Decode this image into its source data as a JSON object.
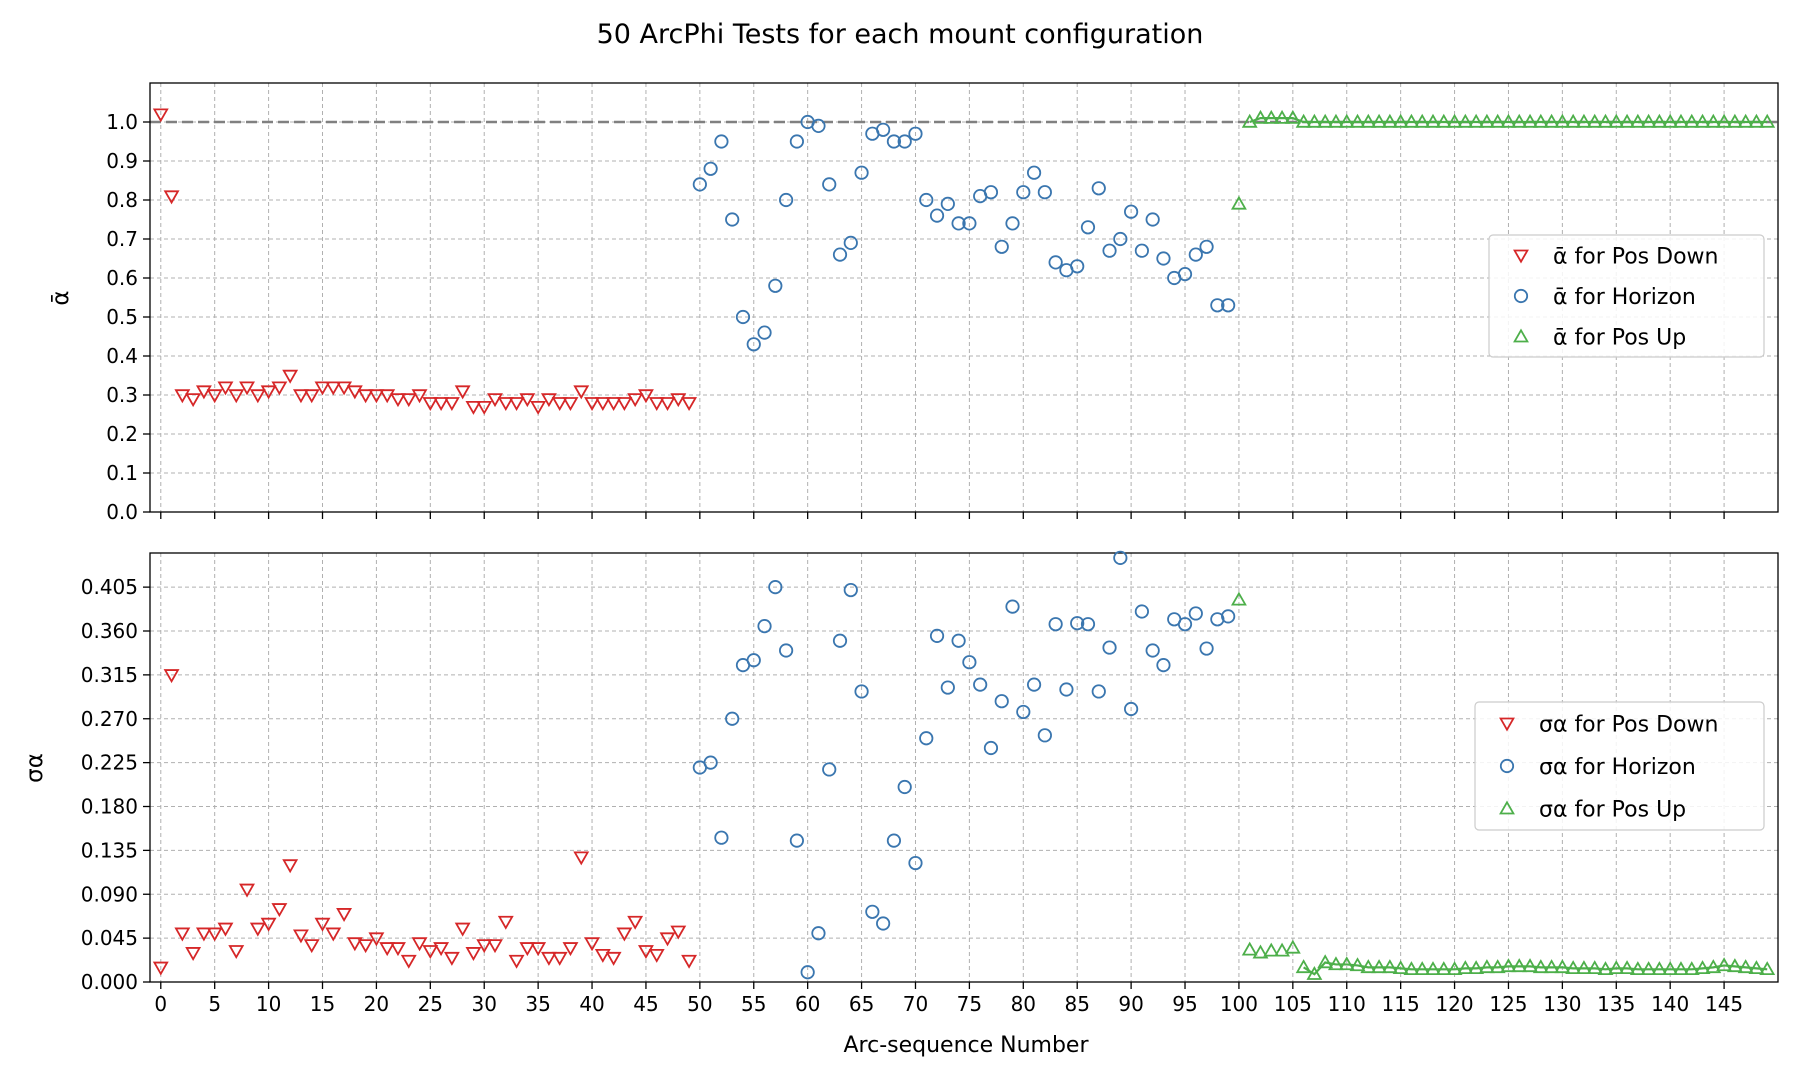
{
  "figure": {
    "title": "50 ArcPhi Tests for each mount configuration",
    "xlabel": "Arc-sequence Number"
  },
  "colors": {
    "pos_down": "#d62728",
    "horizon": "#3a76af",
    "pos_up": "#4daf4a",
    "reference_line": "#808080"
  },
  "chart_data": [
    {
      "type": "scatter",
      "ylabel": "ᾱ",
      "xlim": [
        -1,
        150
      ],
      "ylim": [
        0,
        1.1
      ],
      "xticks": [
        0,
        5,
        10,
        15,
        20,
        25,
        30,
        35,
        40,
        45,
        50,
        55,
        60,
        65,
        70,
        75,
        80,
        85,
        90,
        95,
        100,
        105,
        110,
        115,
        120,
        125,
        130,
        135,
        140,
        145
      ],
      "yticks": [
        "0.0",
        "0.1",
        "0.2",
        "0.3",
        "0.4",
        "0.5",
        "0.6",
        "0.7",
        "0.8",
        "0.9",
        "1.0"
      ],
      "reference_line": 1.0,
      "legend_position": "center-right",
      "series": [
        {
          "name": "ᾱ for Pos Down",
          "marker": "triangle-down",
          "color": "#d62728",
          "x": [
            0,
            1,
            2,
            3,
            4,
            5,
            6,
            7,
            8,
            9,
            10,
            11,
            12,
            13,
            14,
            15,
            16,
            17,
            18,
            19,
            20,
            21,
            22,
            23,
            24,
            25,
            26,
            27,
            28,
            29,
            30,
            31,
            32,
            33,
            34,
            35,
            36,
            37,
            38,
            39,
            40,
            41,
            42,
            43,
            44,
            45,
            46,
            47,
            48,
            49
          ],
          "y": [
            1.02,
            0.81,
            0.3,
            0.29,
            0.31,
            0.3,
            0.32,
            0.3,
            0.32,
            0.3,
            0.31,
            0.32,
            0.35,
            0.3,
            0.3,
            0.32,
            0.32,
            0.32,
            0.31,
            0.3,
            0.3,
            0.3,
            0.29,
            0.29,
            0.3,
            0.28,
            0.28,
            0.28,
            0.31,
            0.27,
            0.27,
            0.29,
            0.28,
            0.28,
            0.29,
            0.27,
            0.29,
            0.28,
            0.28,
            0.31,
            0.28,
            0.28,
            0.28,
            0.28,
            0.29,
            0.3,
            0.28,
            0.28,
            0.29,
            0.28
          ]
        },
        {
          "name": "ᾱ for Horizon",
          "marker": "circle",
          "color": "#3a76af",
          "x": [
            50,
            51,
            52,
            53,
            54,
            55,
            56,
            57,
            58,
            59,
            60,
            61,
            62,
            63,
            64,
            65,
            66,
            67,
            68,
            69,
            70,
            71,
            72,
            73,
            74,
            75,
            76,
            77,
            78,
            79,
            80,
            81,
            82,
            83,
            84,
            85,
            86,
            87,
            88,
            89,
            90,
            91,
            92,
            93,
            94,
            95,
            96,
            97,
            98,
            99
          ],
          "y": [
            0.84,
            0.88,
            0.95,
            0.75,
            0.5,
            0.43,
            0.46,
            0.58,
            0.8,
            0.95,
            1.0,
            0.99,
            0.84,
            0.66,
            0.69,
            0.87,
            0.97,
            0.98,
            0.95,
            0.95,
            0.97,
            0.8,
            0.76,
            0.79,
            0.74,
            0.74,
            0.81,
            0.82,
            0.68,
            0.74,
            0.82,
            0.87,
            0.82,
            0.64,
            0.62,
            0.63,
            0.73,
            0.83,
            0.67,
            0.7,
            0.77,
            0.67,
            0.75,
            0.65,
            0.6,
            0.61,
            0.66,
            0.68,
            0.53,
            0.53
          ]
        },
        {
          "name": "ᾱ for Pos Up",
          "marker": "triangle-up",
          "color": "#4daf4a",
          "connect_from": 101,
          "x": [
            100,
            101,
            102,
            103,
            104,
            105,
            106,
            107,
            108,
            109,
            110,
            111,
            112,
            113,
            114,
            115,
            116,
            117,
            118,
            119,
            120,
            121,
            122,
            123,
            124,
            125,
            126,
            127,
            128,
            129,
            130,
            131,
            132,
            133,
            134,
            135,
            136,
            137,
            138,
            139,
            140,
            141,
            142,
            143,
            144,
            145,
            146,
            147,
            148,
            149
          ],
          "y": [
            0.79,
            1.0,
            1.01,
            1.01,
            1.01,
            1.01,
            1.0,
            1.0,
            1.0,
            1.0,
            1.0,
            1.0,
            1.0,
            1.0,
            1.0,
            1.0,
            1.0,
            1.0,
            1.0,
            1.0,
            1.0,
            1.0,
            1.0,
            1.0,
            1.0,
            1.0,
            1.0,
            1.0,
            1.0,
            1.0,
            1.0,
            1.0,
            1.0,
            1.0,
            1.0,
            1.0,
            1.0,
            1.0,
            1.0,
            1.0,
            1.0,
            1.0,
            1.0,
            1.0,
            1.0,
            1.0,
            1.0,
            1.0,
            1.0,
            1.0
          ]
        }
      ]
    },
    {
      "type": "scatter",
      "ylabel": "σα",
      "xlim": [
        -1,
        150
      ],
      "ylim": [
        0,
        0.44
      ],
      "xticks": [
        0,
        5,
        10,
        15,
        20,
        25,
        30,
        35,
        40,
        45,
        50,
        55,
        60,
        65,
        70,
        75,
        80,
        85,
        90,
        95,
        100,
        105,
        110,
        115,
        120,
        125,
        130,
        135,
        140,
        145
      ],
      "yticks": [
        "0.000",
        "0.045",
        "0.090",
        "0.135",
        "0.180",
        "0.225",
        "0.270",
        "0.315",
        "0.360",
        "0.405"
      ],
      "legend_position": "center-right",
      "series": [
        {
          "name": "σα for Pos Down",
          "marker": "triangle-down",
          "color": "#d62728",
          "x": [
            0,
            1,
            2,
            3,
            4,
            5,
            6,
            7,
            8,
            9,
            10,
            11,
            12,
            13,
            14,
            15,
            16,
            17,
            18,
            19,
            20,
            21,
            22,
            23,
            24,
            25,
            26,
            27,
            28,
            29,
            30,
            31,
            32,
            33,
            34,
            35,
            36,
            37,
            38,
            39,
            40,
            41,
            42,
            43,
            44,
            45,
            46,
            47,
            48,
            49
          ],
          "y": [
            0.015,
            0.315,
            0.05,
            0.03,
            0.05,
            0.05,
            0.055,
            0.032,
            0.095,
            0.055,
            0.06,
            0.075,
            0.12,
            0.048,
            0.038,
            0.06,
            0.05,
            0.07,
            0.04,
            0.038,
            0.045,
            0.035,
            0.035,
            0.022,
            0.04,
            0.032,
            0.035,
            0.025,
            0.055,
            0.03,
            0.038,
            0.038,
            0.062,
            0.022,
            0.035,
            0.035,
            0.025,
            0.025,
            0.035,
            0.128,
            0.04,
            0.028,
            0.025,
            0.05,
            0.062,
            0.032,
            0.028,
            0.045,
            0.052,
            0.022
          ]
        },
        {
          "name": "σα for Horizon",
          "marker": "circle",
          "color": "#3a76af",
          "x": [
            50,
            51,
            52,
            53,
            54,
            55,
            56,
            57,
            58,
            59,
            60,
            61,
            62,
            63,
            64,
            65,
            66,
            67,
            68,
            69,
            70,
            71,
            72,
            73,
            74,
            75,
            76,
            77,
            78,
            79,
            80,
            81,
            82,
            83,
            84,
            85,
            86,
            87,
            88,
            89,
            90,
            91,
            92,
            93,
            94,
            95,
            96,
            97,
            98,
            99
          ],
          "y": [
            0.22,
            0.225,
            0.148,
            0.27,
            0.325,
            0.33,
            0.365,
            0.405,
            0.34,
            0.145,
            0.01,
            0.05,
            0.218,
            0.35,
            0.402,
            0.298,
            0.072,
            0.06,
            0.145,
            0.2,
            0.122,
            0.25,
            0.355,
            0.302,
            0.35,
            0.328,
            0.305,
            0.24,
            0.288,
            0.385,
            0.277,
            0.305,
            0.253,
            0.367,
            0.3,
            0.368,
            0.367,
            0.298,
            0.343,
            0.435,
            0.28,
            0.38,
            0.34,
            0.325,
            0.372,
            0.367,
            0.378,
            0.342,
            0.372,
            0.375
          ]
        },
        {
          "name": "σα for Pos Up",
          "marker": "triangle-up",
          "color": "#4daf4a",
          "connect_from": 106,
          "x": [
            100,
            101,
            102,
            103,
            104,
            105,
            106,
            107,
            108,
            109,
            110,
            111,
            112,
            113,
            114,
            115,
            116,
            117,
            118,
            119,
            120,
            121,
            122,
            123,
            124,
            125,
            126,
            127,
            128,
            129,
            130,
            131,
            132,
            133,
            134,
            135,
            136,
            137,
            138,
            139,
            140,
            141,
            142,
            143,
            144,
            145,
            146,
            147,
            148,
            149
          ],
          "y": [
            0.392,
            0.033,
            0.03,
            0.032,
            0.032,
            0.035,
            0.015,
            0.008,
            0.02,
            0.018,
            0.018,
            0.017,
            0.015,
            0.015,
            0.015,
            0.014,
            0.013,
            0.013,
            0.013,
            0.013,
            0.013,
            0.014,
            0.014,
            0.015,
            0.015,
            0.016,
            0.016,
            0.016,
            0.015,
            0.015,
            0.015,
            0.014,
            0.014,
            0.014,
            0.013,
            0.014,
            0.014,
            0.013,
            0.013,
            0.013,
            0.013,
            0.013,
            0.013,
            0.014,
            0.015,
            0.017,
            0.016,
            0.015,
            0.014,
            0.013
          ]
        }
      ]
    }
  ]
}
